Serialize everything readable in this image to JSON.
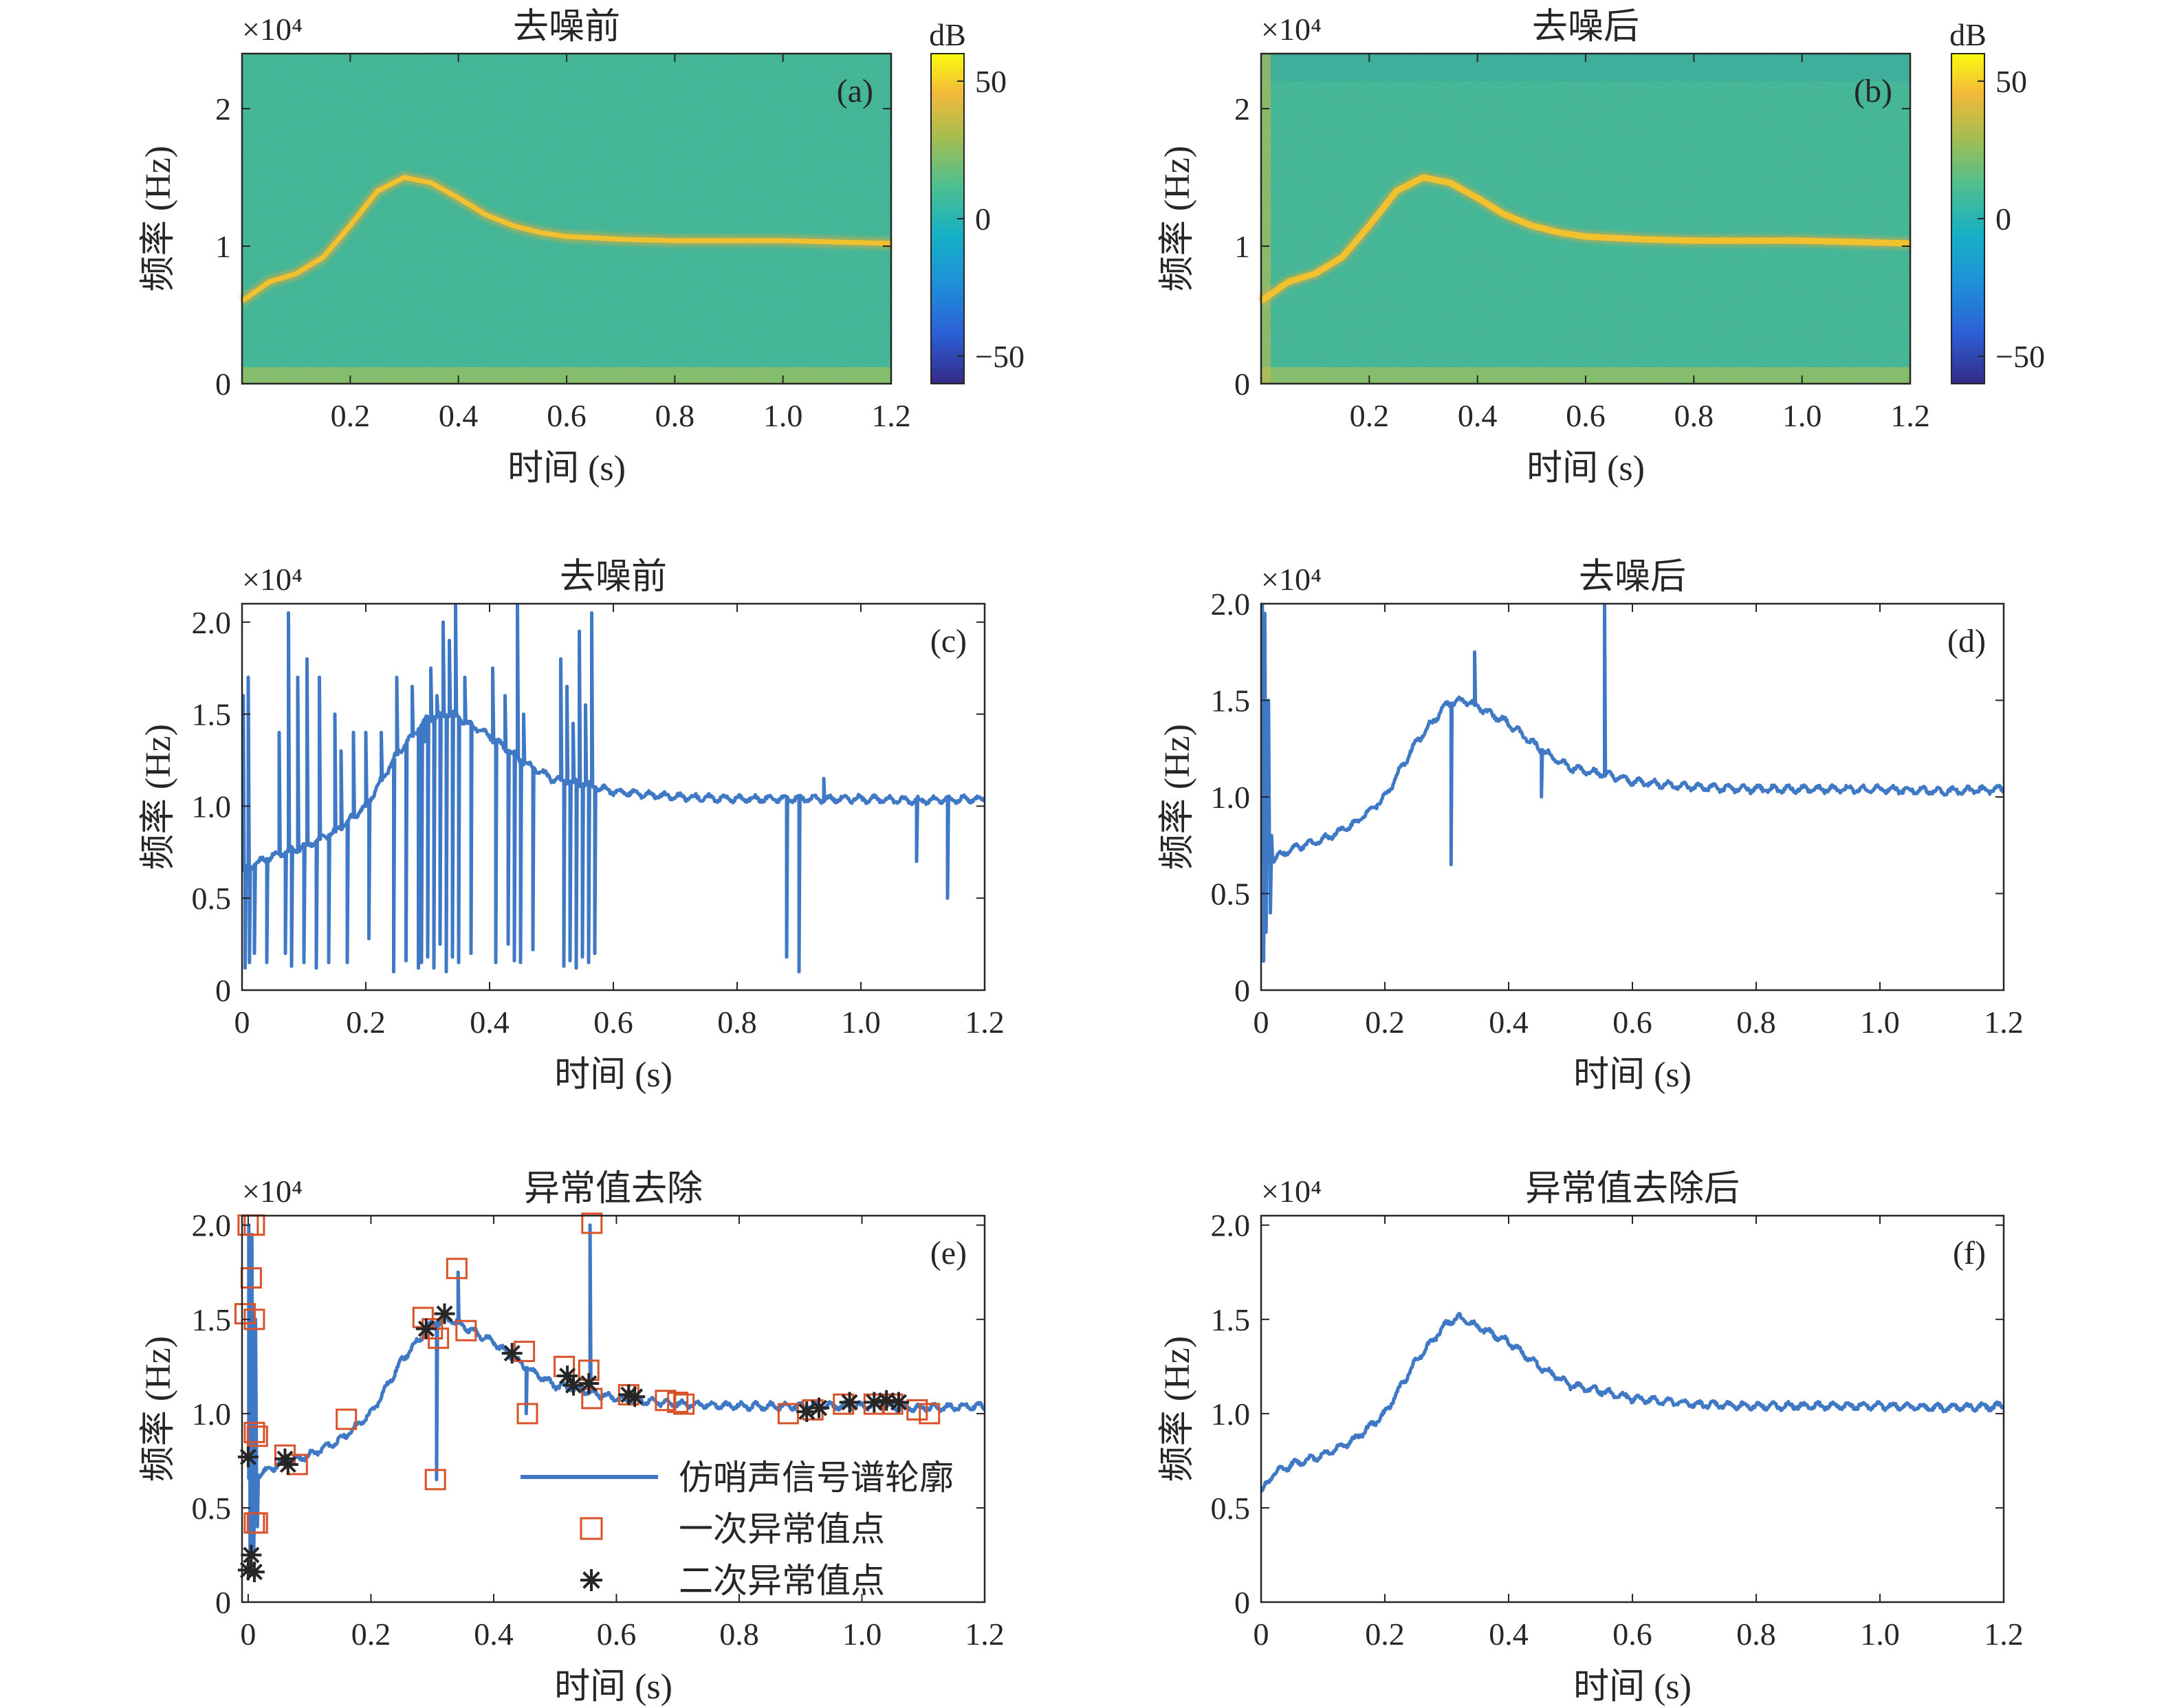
{
  "colors": {
    "contour": "#3f78c4",
    "outlier1": "#d9532a",
    "outlier2": "#262626",
    "axis": "#262626",
    "spec_bg": "#3fb48f",
    "spec_ridge": "#f2c12e"
  },
  "chart_data": [
    {
      "id": "a",
      "type": "heatmap",
      "panel_label": "(a)",
      "title": "去噪前",
      "xlabel": "时间 (s)",
      "ylabel": "频率 (Hz)",
      "exponent": "×10⁴",
      "xlim": [
        0,
        1.2
      ],
      "ylim": [
        0,
        24000
      ],
      "xticks": [
        0.2,
        0.4,
        0.6,
        0.8,
        1.0,
        1.2
      ],
      "xtick_labels": [
        "0.2",
        "0.4",
        "0.6",
        "0.8",
        "1.0",
        "1.2"
      ],
      "yticks": [
        0,
        10000,
        20000
      ],
      "ytick_labels": [
        "0",
        "1",
        "2"
      ],
      "ridge": [
        [
          0,
          6000
        ],
        [
          0.05,
          7400
        ],
        [
          0.1,
          8000
        ],
        [
          0.15,
          9200
        ],
        [
          0.2,
          11500
        ],
        [
          0.25,
          14000
        ],
        [
          0.3,
          15000
        ],
        [
          0.35,
          14600
        ],
        [
          0.4,
          13500
        ],
        [
          0.45,
          12300
        ],
        [
          0.5,
          11500
        ],
        [
          0.55,
          11000
        ],
        [
          0.6,
          10700
        ],
        [
          0.7,
          10500
        ],
        [
          0.8,
          10400
        ],
        [
          0.9,
          10400
        ],
        [
          1.0,
          10400
        ],
        [
          1.1,
          10300
        ],
        [
          1.2,
          10200
        ]
      ],
      "colorbar": {
        "label": "dB",
        "range": [
          -60,
          60
        ],
        "ticks": [
          50,
          0,
          -50
        ],
        "tick_labels": [
          "50",
          "0",
          "−50"
        ]
      }
    },
    {
      "id": "b",
      "type": "heatmap",
      "panel_label": "(b)",
      "title": "去噪后",
      "xlabel": "时间 (s)",
      "ylabel": "频率 (Hz)",
      "exponent": "×10⁴",
      "xlim": [
        0,
        1.2
      ],
      "ylim": [
        0,
        24000
      ],
      "xticks": [
        0.2,
        0.4,
        0.6,
        0.8,
        1.0,
        1.2
      ],
      "xtick_labels": [
        "0.2",
        "0.4",
        "0.6",
        "0.8",
        "1.0",
        "1.2"
      ],
      "yticks": [
        0,
        10000,
        20000
      ],
      "ytick_labels": [
        "0",
        "1",
        "2"
      ],
      "ridge": [
        [
          0,
          6000
        ],
        [
          0.05,
          7400
        ],
        [
          0.1,
          8000
        ],
        [
          0.15,
          9200
        ],
        [
          0.2,
          11500
        ],
        [
          0.25,
          14000
        ],
        [
          0.3,
          15000
        ],
        [
          0.35,
          14600
        ],
        [
          0.4,
          13500
        ],
        [
          0.45,
          12300
        ],
        [
          0.5,
          11500
        ],
        [
          0.55,
          11000
        ],
        [
          0.6,
          10700
        ],
        [
          0.7,
          10500
        ],
        [
          0.8,
          10400
        ],
        [
          0.9,
          10400
        ],
        [
          1.0,
          10400
        ],
        [
          1.1,
          10300
        ],
        [
          1.2,
          10200
        ]
      ],
      "colorbar": {
        "label": "dB",
        "range": [
          -60,
          60
        ],
        "ticks": [
          50,
          0,
          -50
        ],
        "tick_labels": [
          "50",
          "0",
          "−50"
        ]
      }
    },
    {
      "id": "c",
      "type": "line",
      "panel_label": "(c)",
      "title": "去噪前",
      "xlabel": "时间 (s)",
      "ylabel": "频率 (Hz)",
      "exponent": "×10⁴",
      "xlim": [
        0,
        1.2
      ],
      "ylim": [
        0,
        21000
      ],
      "xticks": [
        0,
        0.2,
        0.4,
        0.6,
        0.8,
        1.0,
        1.2
      ],
      "xtick_labels": [
        "0",
        "0.2",
        "0.4",
        "0.6",
        "0.8",
        "1.0",
        "1.2"
      ],
      "yticks": [
        0,
        5000,
        10000,
        15000,
        20000
      ],
      "ytick_labels": [
        "0",
        "0.5",
        "1.0",
        "1.5",
        "2.0"
      ],
      "baseline": [
        [
          0,
          6500
        ],
        [
          0.05,
          7300
        ],
        [
          0.1,
          7800
        ],
        [
          0.15,
          8600
        ],
        [
          0.2,
          10000
        ],
        [
          0.25,
          12800
        ],
        [
          0.3,
          14800
        ],
        [
          0.34,
          15000
        ],
        [
          0.4,
          13800
        ],
        [
          0.45,
          12500
        ],
        [
          0.5,
          11500
        ],
        [
          0.55,
          11200
        ],
        [
          0.6,
          10800
        ],
        [
          0.7,
          10500
        ],
        [
          0.8,
          10400
        ],
        [
          0.9,
          10400
        ],
        [
          1.0,
          10400
        ],
        [
          1.1,
          10300
        ],
        [
          1.2,
          10400
        ]
      ],
      "spikes": [
        [
          0.002,
          16000
        ],
        [
          0.005,
          1200
        ],
        [
          0.01,
          17000
        ],
        [
          0.012,
          1500
        ],
        [
          0.02,
          2000
        ],
        [
          0.04,
          1500
        ],
        [
          0.06,
          14000
        ],
        [
          0.07,
          2000
        ],
        [
          0.075,
          20500
        ],
        [
          0.08,
          1300
        ],
        [
          0.09,
          17000
        ],
        [
          0.1,
          1500
        ],
        [
          0.105,
          18000
        ],
        [
          0.12,
          1200
        ],
        [
          0.125,
          17000
        ],
        [
          0.14,
          1500
        ],
        [
          0.15,
          15000
        ],
        [
          0.16,
          13000
        ],
        [
          0.17,
          1500
        ],
        [
          0.18,
          14000
        ],
        [
          0.2,
          14000
        ],
        [
          0.205,
          2800
        ],
        [
          0.225,
          14000
        ],
        [
          0.245,
          1000
        ],
        [
          0.25,
          17000
        ],
        [
          0.265,
          1600
        ],
        [
          0.275,
          16500
        ],
        [
          0.285,
          1200
        ],
        [
          0.29,
          1500
        ],
        [
          0.295,
          13500
        ],
        [
          0.3,
          1800
        ],
        [
          0.305,
          17500
        ],
        [
          0.31,
          1200
        ],
        [
          0.315,
          16000
        ],
        [
          0.32,
          2500
        ],
        [
          0.325,
          20000
        ],
        [
          0.33,
          1000
        ],
        [
          0.335,
          19000
        ],
        [
          0.34,
          1800
        ],
        [
          0.345,
          21000
        ],
        [
          0.35,
          1500
        ],
        [
          0.36,
          17000
        ],
        [
          0.37,
          2000
        ],
        [
          0.405,
          17500
        ],
        [
          0.41,
          1500
        ],
        [
          0.425,
          16000
        ],
        [
          0.43,
          2500
        ],
        [
          0.44,
          1600
        ],
        [
          0.445,
          21000
        ],
        [
          0.45,
          1500
        ],
        [
          0.455,
          15000
        ],
        [
          0.47,
          2200
        ],
        [
          0.515,
          18000
        ],
        [
          0.52,
          1300
        ],
        [
          0.525,
          16500
        ],
        [
          0.53,
          1600
        ],
        [
          0.535,
          14500
        ],
        [
          0.54,
          1200
        ],
        [
          0.545,
          19500
        ],
        [
          0.55,
          1800
        ],
        [
          0.555,
          15500
        ],
        [
          0.56,
          1500
        ],
        [
          0.565,
          20500
        ],
        [
          0.57,
          2000
        ],
        [
          0.88,
          1800
        ],
        [
          0.9,
          1000
        ],
        [
          0.94,
          11500
        ],
        [
          1.09,
          7000
        ],
        [
          1.14,
          5000
        ]
      ]
    },
    {
      "id": "d",
      "type": "line",
      "panel_label": "(d)",
      "title": "去噪后",
      "xlabel": "时间 (s)",
      "ylabel": "频率 (Hz)",
      "exponent": "×10⁴",
      "xlim": [
        0,
        1.2
      ],
      "ylim": [
        0,
        20000
      ],
      "xticks": [
        0,
        0.2,
        0.4,
        0.6,
        0.8,
        1.0,
        1.2
      ],
      "xtick_labels": [
        "0",
        "0.2",
        "0.4",
        "0.6",
        "0.8",
        "1.0",
        "1.2"
      ],
      "yticks": [
        0,
        5000,
        10000,
        15000,
        20000
      ],
      "ytick_labels": [
        "0",
        "0.5",
        "1.0",
        "1.5",
        "2.0"
      ],
      "baseline": [
        [
          0,
          6500
        ],
        [
          0.05,
          7300
        ],
        [
          0.1,
          7800
        ],
        [
          0.15,
          8600
        ],
        [
          0.2,
          10000
        ],
        [
          0.25,
          12800
        ],
        [
          0.3,
          14800
        ],
        [
          0.33,
          15000
        ],
        [
          0.4,
          13800
        ],
        [
          0.45,
          12500
        ],
        [
          0.5,
          11500
        ],
        [
          0.55,
          11200
        ],
        [
          0.6,
          10800
        ],
        [
          0.7,
          10500
        ],
        [
          0.8,
          10400
        ],
        [
          0.9,
          10400
        ],
        [
          1.0,
          10400
        ],
        [
          1.1,
          10300
        ],
        [
          1.2,
          10400
        ]
      ],
      "spikes": [
        [
          0.002,
          20000
        ],
        [
          0.004,
          1500
        ],
        [
          0.006,
          19500
        ],
        [
          0.008,
          3000
        ],
        [
          0.012,
          15000
        ],
        [
          0.015,
          4000
        ],
        [
          0.017,
          8000
        ],
        [
          0.307,
          6500
        ],
        [
          0.345,
          17500
        ],
        [
          0.453,
          10000
        ],
        [
          0.555,
          20000
        ]
      ]
    },
    {
      "id": "e",
      "type": "line",
      "panel_label": "(e)",
      "title": "异常值去除",
      "xlabel": "时间 (s)",
      "ylabel": "频率 (Hz)",
      "exponent": "×10⁴",
      "xlim": [
        -0.01,
        1.2
      ],
      "ylim": [
        0,
        20500
      ],
      "xticks": [
        0,
        0.2,
        0.4,
        0.6,
        0.8,
        1.0,
        1.2
      ],
      "xtick_labels": [
        "0",
        "0.2",
        "0.4",
        "0.6",
        "0.8",
        "1.0",
        "1.2"
      ],
      "yticks": [
        0,
        5000,
        10000,
        15000,
        20000
      ],
      "ytick_labels": [
        "0",
        "0.5",
        "1.0",
        "1.5",
        "2.0"
      ],
      "legend": [
        "仿哨声信号谱轮廓",
        "一次异常值点",
        "二次异常值点"
      ],
      "baseline": [
        [
          0,
          6500
        ],
        [
          0.05,
          7300
        ],
        [
          0.1,
          7800
        ],
        [
          0.15,
          8600
        ],
        [
          0.2,
          10000
        ],
        [
          0.25,
          12800
        ],
        [
          0.3,
          14800
        ],
        [
          0.33,
          15000
        ],
        [
          0.4,
          13800
        ],
        [
          0.45,
          12500
        ],
        [
          0.5,
          11500
        ],
        [
          0.55,
          11200
        ],
        [
          0.6,
          10800
        ],
        [
          0.7,
          10500
        ],
        [
          0.8,
          10400
        ],
        [
          0.9,
          10400
        ],
        [
          1.0,
          10400
        ],
        [
          1.1,
          10300
        ],
        [
          1.2,
          10400
        ]
      ],
      "spikes": [
        [
          0.001,
          20000
        ],
        [
          0.003,
          1500
        ],
        [
          0.006,
          19500
        ],
        [
          0.009,
          2500
        ],
        [
          0.012,
          15000
        ],
        [
          0.015,
          4000
        ],
        [
          0.307,
          6500
        ],
        [
          0.342,
          17500
        ],
        [
          0.453,
          10000
        ],
        [
          0.557,
          20000
        ]
      ],
      "outliers_first": [
        [
          0.0,
          20000
        ],
        [
          0.01,
          20000
        ],
        [
          -0.005,
          15300
        ],
        [
          0.005,
          17200
        ],
        [
          0.01,
          15000
        ],
        [
          0.01,
          9000
        ],
        [
          0.015,
          8800
        ],
        [
          0.01,
          4200
        ],
        [
          0.015,
          4200
        ],
        [
          0.06,
          7800
        ],
        [
          0.08,
          7300
        ],
        [
          0.16,
          9700
        ],
        [
          0.285,
          15100
        ],
        [
          0.3,
          14500
        ],
        [
          0.305,
          6500
        ],
        [
          0.31,
          14000
        ],
        [
          0.34,
          17700
        ],
        [
          0.355,
          14400
        ],
        [
          0.45,
          13300
        ],
        [
          0.455,
          10000
        ],
        [
          0.515,
          12500
        ],
        [
          0.555,
          12300
        ],
        [
          0.56,
          10800
        ],
        [
          0.56,
          20100
        ],
        [
          0.62,
          11000
        ],
        [
          0.68,
          10700
        ],
        [
          0.7,
          10600
        ],
        [
          0.71,
          10500
        ],
        [
          0.88,
          10000
        ],
        [
          0.92,
          10200
        ],
        [
          0.97,
          10500
        ],
        [
          1.02,
          10500
        ],
        [
          1.05,
          10500
        ],
        [
          1.09,
          10200
        ],
        [
          1.11,
          10000
        ]
      ],
      "outliers_second": [
        [
          0.0,
          1700
        ],
        [
          0.005,
          2500
        ],
        [
          0.01,
          1600
        ],
        [
          0.0,
          7700
        ],
        [
          0.06,
          7600
        ],
        [
          0.065,
          7300
        ],
        [
          0.29,
          14500
        ],
        [
          0.32,
          15300
        ],
        [
          0.43,
          13200
        ],
        [
          0.52,
          12000
        ],
        [
          0.53,
          11500
        ],
        [
          0.555,
          11600
        ],
        [
          0.62,
          11000
        ],
        [
          0.63,
          10900
        ],
        [
          0.91,
          10100
        ],
        [
          0.93,
          10300
        ],
        [
          0.98,
          10600
        ],
        [
          1.02,
          10600
        ],
        [
          1.04,
          10700
        ],
        [
          1.06,
          10600
        ]
      ]
    },
    {
      "id": "f",
      "type": "line",
      "panel_label": "(f)",
      "title": "异常值去除后",
      "xlabel": "时间 (s)",
      "ylabel": "频率 (Hz)",
      "exponent": "×10⁴",
      "xlim": [
        0,
        1.2
      ],
      "ylim": [
        0,
        20500
      ],
      "xticks": [
        0,
        0.2,
        0.4,
        0.6,
        0.8,
        1.0,
        1.2
      ],
      "xtick_labels": [
        "0",
        "0.2",
        "0.4",
        "0.6",
        "0.8",
        "1.0",
        "1.2"
      ],
      "yticks": [
        0,
        5000,
        10000,
        15000,
        20000
      ],
      "ytick_labels": [
        "0",
        "0.5",
        "1.0",
        "1.5",
        "2.0"
      ],
      "baseline": [
        [
          0,
          5800
        ],
        [
          0.02,
          6800
        ],
        [
          0.05,
          7300
        ],
        [
          0.1,
          7800
        ],
        [
          0.15,
          8600
        ],
        [
          0.2,
          10000
        ],
        [
          0.25,
          12800
        ],
        [
          0.3,
          14800
        ],
        [
          0.32,
          15100
        ],
        [
          0.4,
          13800
        ],
        [
          0.45,
          12500
        ],
        [
          0.5,
          11500
        ],
        [
          0.55,
          11200
        ],
        [
          0.6,
          10800
        ],
        [
          0.7,
          10500
        ],
        [
          0.8,
          10400
        ],
        [
          0.9,
          10400
        ],
        [
          1.0,
          10400
        ],
        [
          1.1,
          10300
        ],
        [
          1.2,
          10400
        ]
      ]
    }
  ]
}
